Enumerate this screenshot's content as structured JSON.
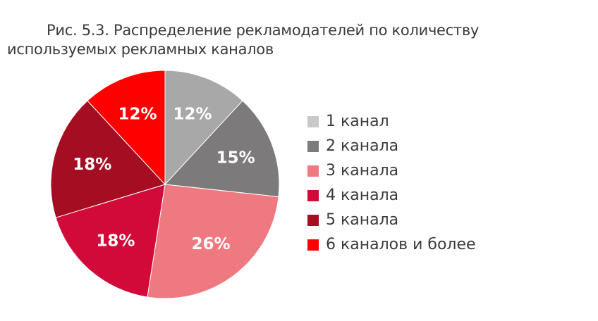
{
  "title": "Рис. 5.3. Распределение рекламодателей по количеству используемых рекламных каналов",
  "chart_data": {
    "type": "pie",
    "title": "Рис. 5.3. Распределение рекламодателей по количеству используемых рекламных каналов",
    "legend_position": "right",
    "slices": [
      {
        "label": "1 канал",
        "value": 12,
        "display": "12%",
        "color": "#a8a8a8",
        "legend_color": "#c8c8c8"
      },
      {
        "label": "2 канала",
        "value": 15,
        "display": "15%",
        "color": "#7d7a7b",
        "legend_color": "#7d7a7b"
      },
      {
        "label": "3 канала",
        "value": 26,
        "display": "26%",
        "color": "#ef7980",
        "legend_color": "#ef7980"
      },
      {
        "label": "4 канала",
        "value": 18,
        "display": "18%",
        "color": "#d10a3a",
        "legend_color": "#d10a3a"
      },
      {
        "label": "5 канала",
        "value": 18,
        "display": "18%",
        "color": "#a50e22",
        "legend_color": "#a50e22"
      },
      {
        "label": "6 каналов и более",
        "value": 12,
        "display": "12%",
        "color": "#ff0000",
        "legend_color": "#ff0000"
      }
    ]
  }
}
